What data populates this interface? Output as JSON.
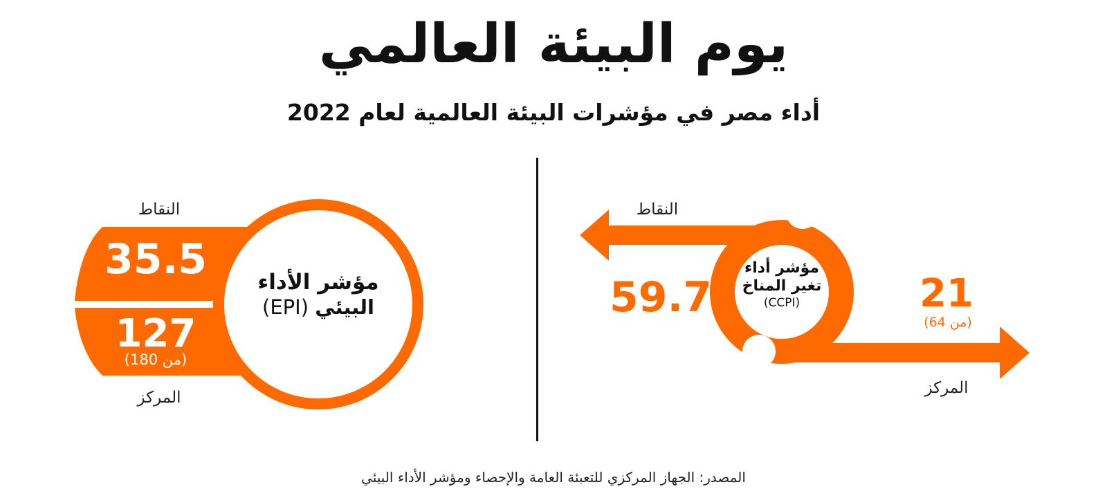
{
  "title": "يوم البيئة العالمي",
  "subtitle": "أداء مصر في مؤشرات البيئة العالمية لعام 2022",
  "epi": {
    "name_line1": "مؤشر الأداء",
    "name_line2": "البيئي",
    "abbr": "(EPI)",
    "score_label": "النقاط",
    "score": "35.5",
    "rank_label": "المركز",
    "rank": "127",
    "rank_of": "(من 180)"
  },
  "ccpi": {
    "name_line1": "مؤشر أداء",
    "name_line2": "تغير المناخ",
    "abbr": "(CCPI)",
    "score_label": "النقاط",
    "score": "59.7",
    "rank_label": "المركز",
    "rank": "21",
    "rank_of": "(من 64)"
  },
  "source": "المصدر: الجهاز المركزي للتعبئة العامة والإحصاء ومؤشر الأداء البيئي",
  "colors": {
    "accent": "#ff6a00",
    "text": "#111111"
  }
}
